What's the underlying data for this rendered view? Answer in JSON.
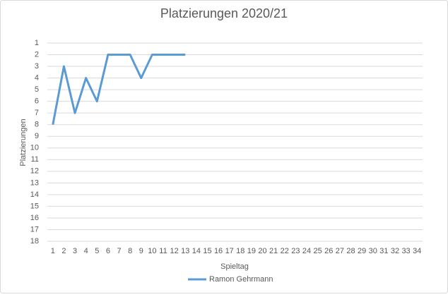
{
  "chart_data": {
    "type": "line",
    "title": "Platzierungen 2020/21",
    "x_label": "Spieltag",
    "y_label": "Platzierungen",
    "categories": [
      1,
      2,
      3,
      4,
      5,
      6,
      7,
      8,
      9,
      10,
      11,
      12,
      13,
      14,
      15,
      16,
      17,
      18,
      19,
      20,
      21,
      22,
      23,
      24,
      25,
      26,
      27,
      28,
      29,
      30,
      31,
      32,
      33,
      34
    ],
    "series": [
      {
        "name": "Ramon Gehrmann",
        "color": "#5b9bd5",
        "values": [
          8,
          3,
          7,
          4,
          6,
          2,
          2,
          2,
          4,
          2,
          2,
          2,
          2,
          null,
          null,
          null,
          null,
          null,
          null,
          null,
          null,
          null,
          null,
          null,
          null,
          null,
          null,
          null,
          null,
          null,
          null,
          null,
          null,
          null
        ]
      }
    ],
    "ylim": [
      18,
      1
    ],
    "yticks": [
      1,
      2,
      3,
      4,
      5,
      6,
      7,
      8,
      9,
      10,
      11,
      12,
      13,
      14,
      15,
      16,
      17,
      18
    ],
    "grid": true,
    "legend": "bottom"
  }
}
